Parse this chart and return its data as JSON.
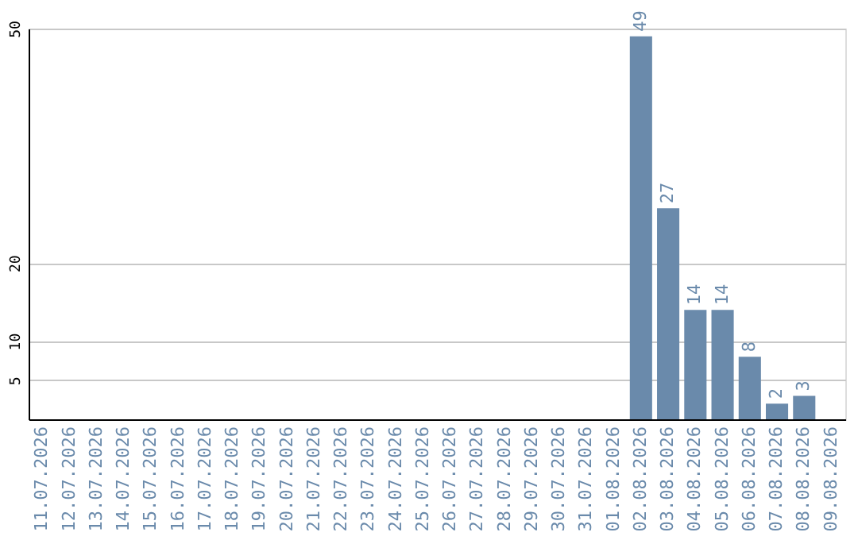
{
  "chart_data": {
    "type": "bar",
    "categories": [
      "11.07.2026",
      "12.07.2026",
      "13.07.2026",
      "14.07.2026",
      "15.07.2026",
      "16.07.2026",
      "17.07.2026",
      "18.07.2026",
      "19.07.2026",
      "20.07.2026",
      "21.07.2026",
      "22.07.2026",
      "23.07.2026",
      "24.07.2026",
      "25.07.2026",
      "26.07.2026",
      "27.07.2026",
      "28.07.2026",
      "29.07.2026",
      "30.07.2026",
      "31.07.2026",
      "01.08.2026",
      "02.08.2026",
      "03.08.2026",
      "04.08.2026",
      "05.08.2026",
      "06.08.2026",
      "07.08.2026",
      "08.08.2026",
      "09.08.2026"
    ],
    "values": [
      0,
      0,
      0,
      0,
      0,
      0,
      0,
      0,
      0,
      0,
      0,
      0,
      0,
      0,
      0,
      0,
      0,
      0,
      0,
      0,
      0,
      0,
      49,
      27,
      14,
      14,
      8,
      2,
      3,
      0
    ],
    "value_labels": [
      null,
      null,
      null,
      null,
      null,
      null,
      null,
      null,
      null,
      null,
      null,
      null,
      null,
      null,
      null,
      null,
      null,
      null,
      null,
      null,
      null,
      null,
      "49",
      "27",
      "14",
      "14",
      "8",
      "2",
      "3",
      null
    ],
    "color": "#6a8aab",
    "ylim": [
      0,
      50
    ],
    "yticks": [
      5,
      10,
      20,
      50
    ],
    "grid": "y"
  }
}
